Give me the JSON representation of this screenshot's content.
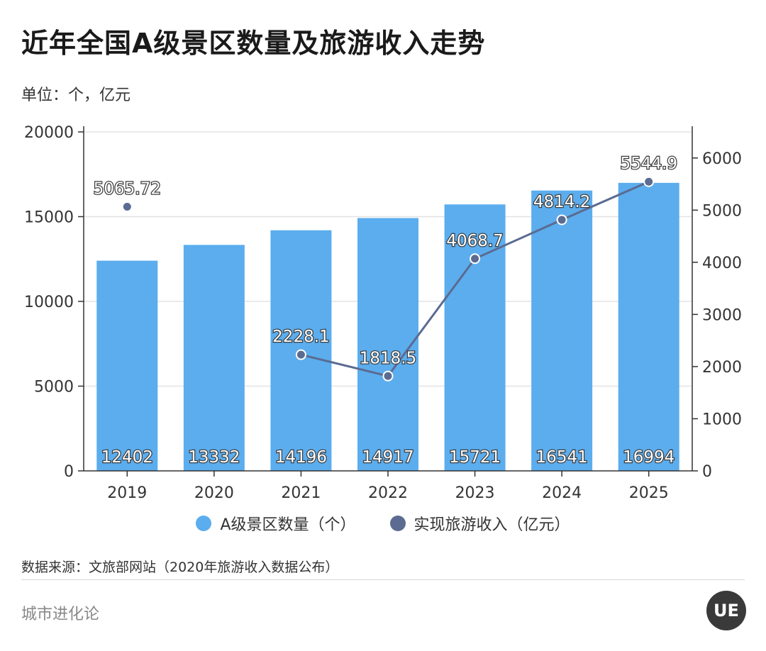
{
  "header": {
    "title": "近年全国A级景区数量及旅游收入走势",
    "unit": "单位：个，亿元"
  },
  "colors": {
    "bar": "#5badee",
    "line": "#5b6b91",
    "grid": "#e3e3e3",
    "axis": "#333333"
  },
  "chart_data": {
    "type": "bar",
    "categories": [
      "2019",
      "2020",
      "2021",
      "2022",
      "2023",
      "2024",
      "2025"
    ],
    "series": [
      {
        "name": "A级景区数量（个）",
        "type": "bar",
        "axis": "left",
        "values": [
          12402,
          13332,
          14196,
          14917,
          15721,
          16541,
          16994
        ],
        "labels": [
          "12402",
          "13332",
          "14196",
          "14917",
          "15721",
          "16541",
          "16994"
        ]
      },
      {
        "name": "实现旅游收入（亿元）",
        "type": "line",
        "axis": "right",
        "values": [
          5065.72,
          null,
          2228.1,
          1818.5,
          4068.7,
          4814.2,
          5544.9
        ],
        "labels": [
          "5065.72",
          "",
          "2228.1",
          "1818.5",
          "4068.7",
          "4814.2",
          "5544.9"
        ]
      }
    ],
    "ylim_left": [
      0,
      20000
    ],
    "yticks_left": [
      "0",
      "5000",
      "10000",
      "15000",
      "20000"
    ],
    "ylim_right": [
      0,
      6500
    ],
    "yticks_right": [
      "0",
      "1000",
      "2000",
      "3000",
      "4000",
      "5000",
      "6000"
    ],
    "grid": true,
    "legend": "bottom"
  },
  "legend": {
    "bar_label": "A级景区数量（个）",
    "line_label": "实现旅游收入（亿元）"
  },
  "source": "数据来源：文旅部网站（2020年旅游收入数据公布）",
  "footer": {
    "brand": "城市进化论",
    "logo_text": "UE"
  }
}
